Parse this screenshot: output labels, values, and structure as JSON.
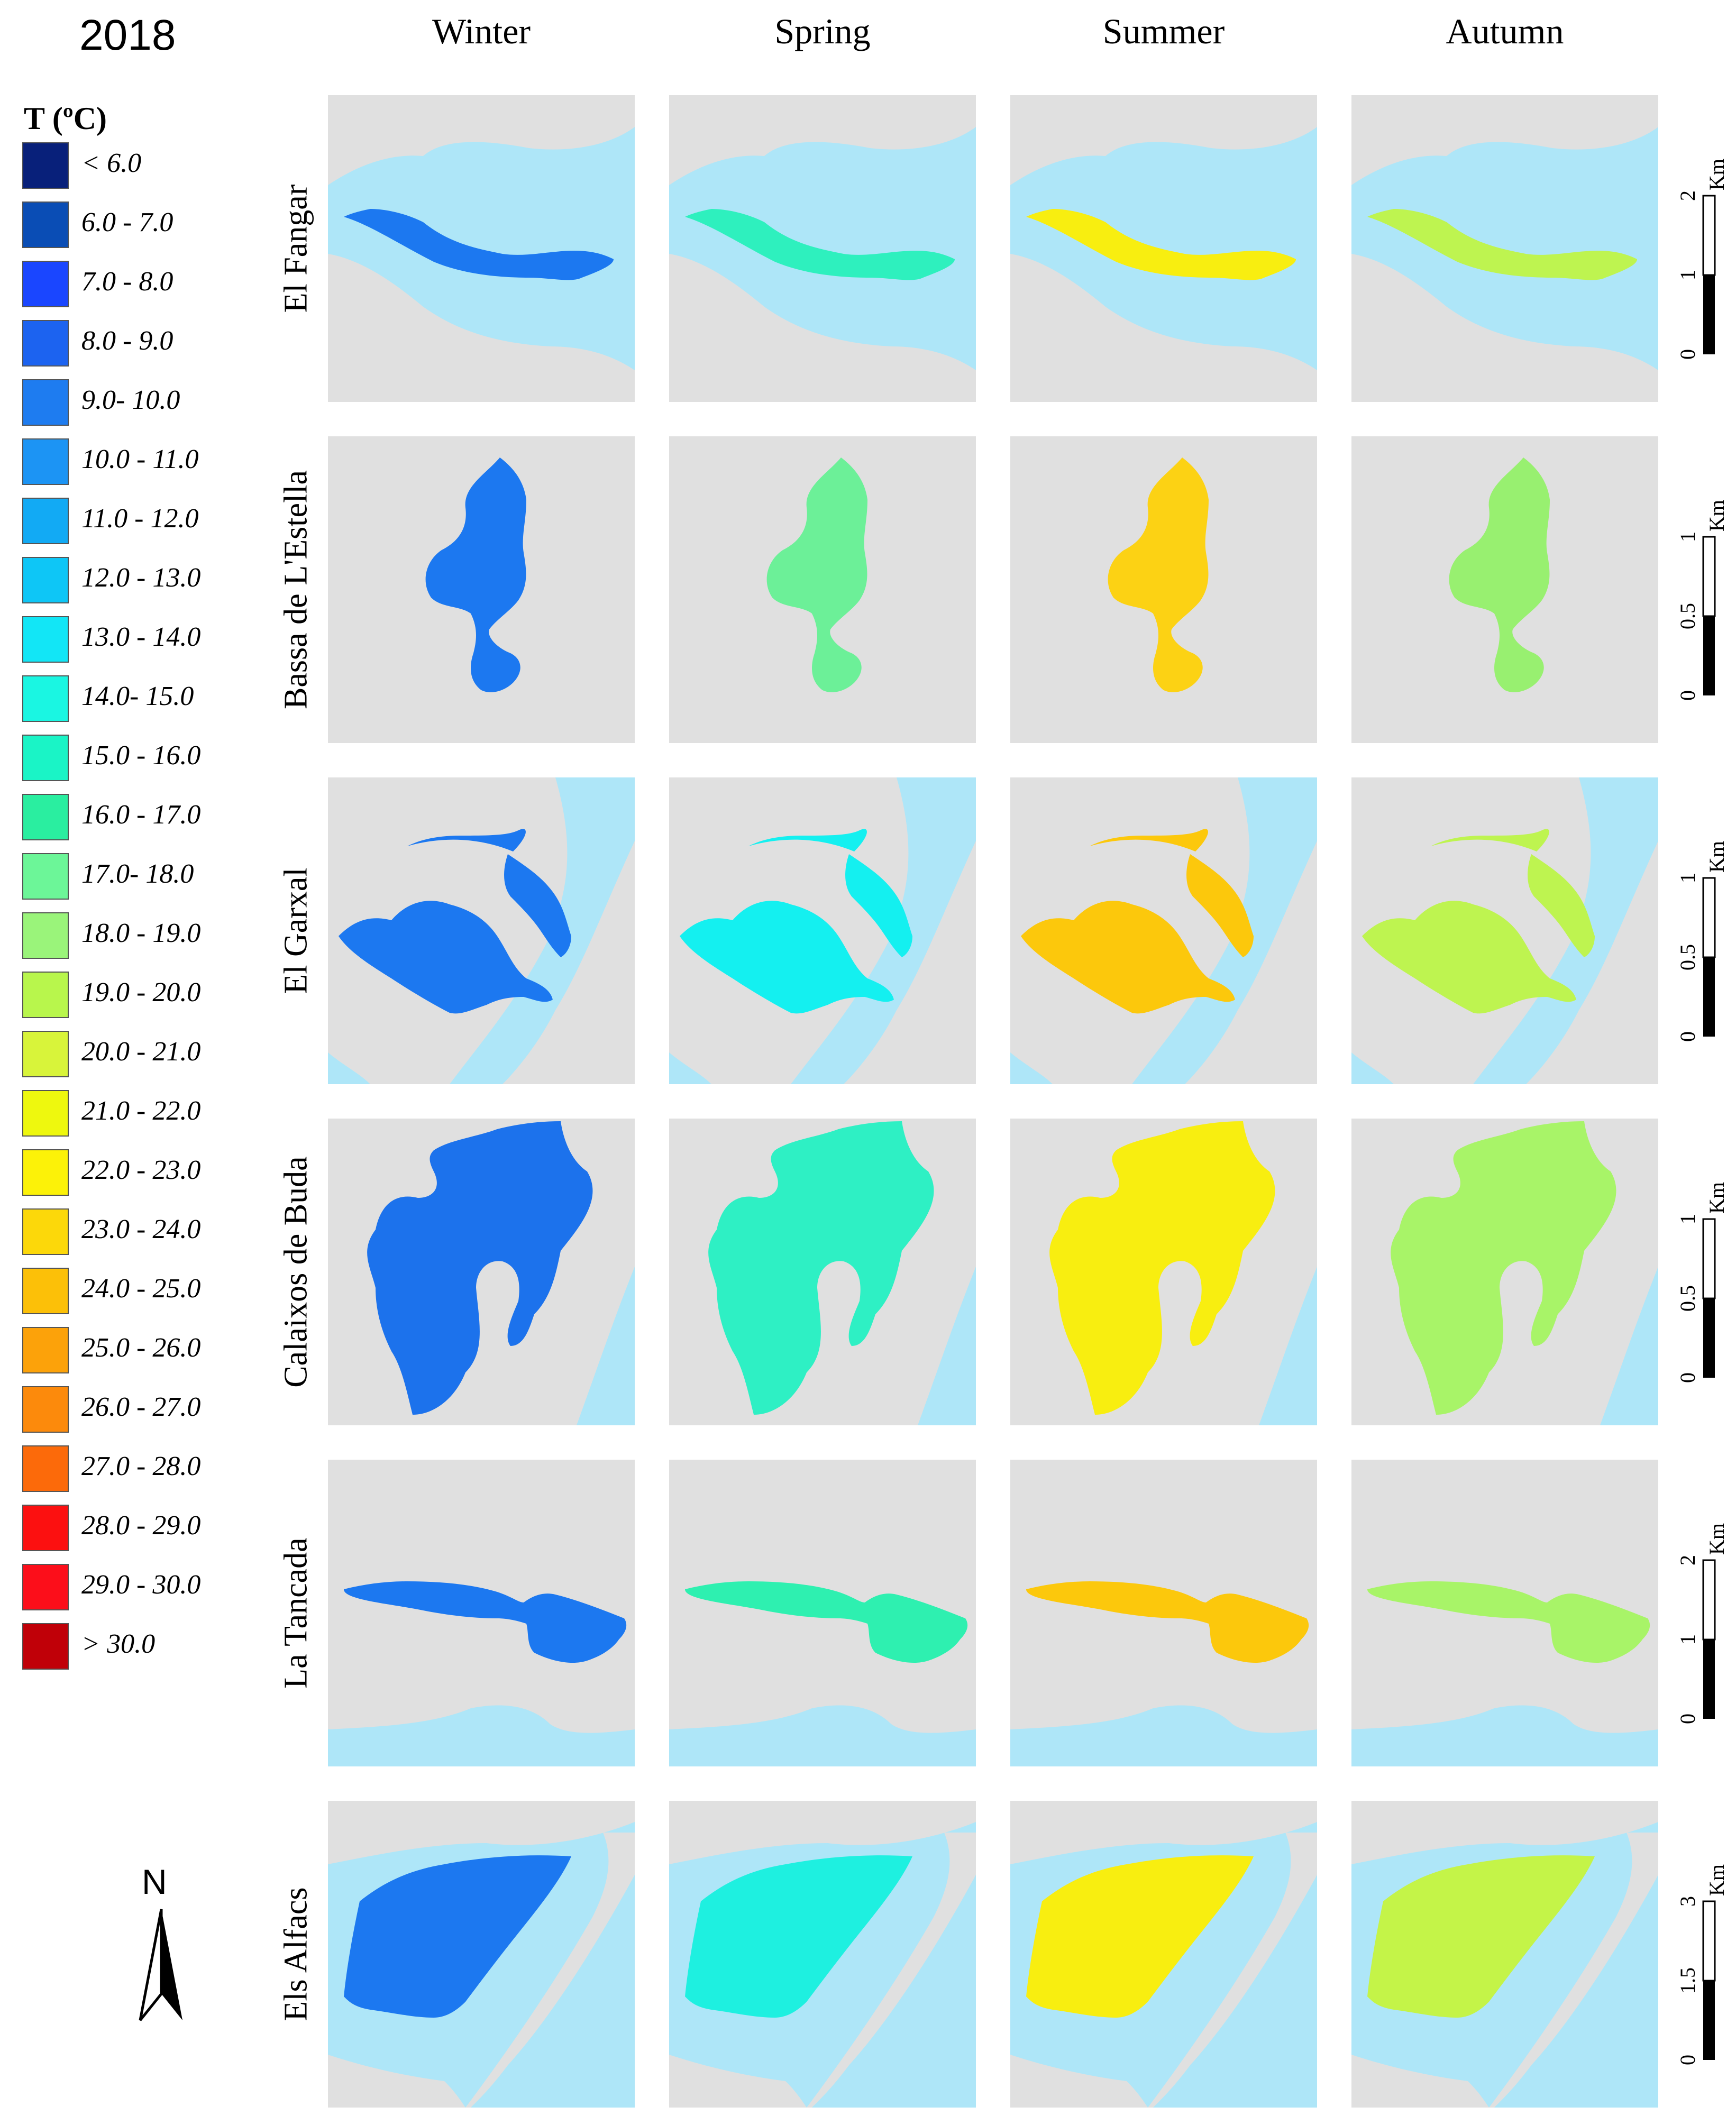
{
  "year": "2018",
  "seasons": [
    "Winter",
    "Spring",
    "Summer",
    "Autumn"
  ],
  "legend": {
    "title": "T (ºC)",
    "classes": [
      {
        "label": "< 6.0",
        "color": "#08207a"
      },
      {
        "label": "6.0 - 7.0",
        "color": "#0a4db5"
      },
      {
        "label": "7.0 - 8.0",
        "color": "#1a46ff"
      },
      {
        "label": "8.0 - 9.0",
        "color": "#1c63f0"
      },
      {
        "label": "9.0- 10.0",
        "color": "#1e7cf0"
      },
      {
        "label": "10.0 - 11.0",
        "color": "#1c94f4"
      },
      {
        "label": "11.0 - 12.0",
        "color": "#12aaf4"
      },
      {
        "label": "12.0 - 13.0",
        "color": "#0ec6f6"
      },
      {
        "label": "13.0 - 14.0",
        "color": "#12e6f6"
      },
      {
        "label": "14.0- 15.0",
        "color": "#1af6e2"
      },
      {
        "label": "15.0 - 16.0",
        "color": "#1af4c6"
      },
      {
        "label": "16.0 - 17.0",
        "color": "#2aeea0"
      },
      {
        "label": "17.0- 18.0",
        "color": "#6cf698"
      },
      {
        "label": "18.0 - 19.0",
        "color": "#9af47a"
      },
      {
        "label": "19.0 - 20.0",
        "color": "#b8f64c"
      },
      {
        "label": "20.0 - 21.0",
        "color": "#d8f43a"
      },
      {
        "label": "21.0 - 22.0",
        "color": "#eef80e"
      },
      {
        "label": "22.0 - 23.0",
        "color": "#fcf208"
      },
      {
        "label": "23.0 - 24.0",
        "color": "#fcd80a"
      },
      {
        "label": "24.0 - 25.0",
        "color": "#fcc008"
      },
      {
        "label": "25.0 - 26.0",
        "color": "#fca20a"
      },
      {
        "label": "26.0 - 27.0",
        "color": "#fc8a0c"
      },
      {
        "label": "27.0 - 28.0",
        "color": "#fc6a0a"
      },
      {
        "label": "28.0 - 29.0",
        "color": "#fc1010"
      },
      {
        "label": "29.0 - 30.0",
        "color": "#fc0e1a"
      },
      {
        "label": "> 30.0",
        "color": "#c00008"
      }
    ]
  },
  "map_colors": {
    "sea": "#aee6f8",
    "land": "#e0e0e0"
  },
  "sites": [
    {
      "name": "El Fangar",
      "scale_ticks": [
        "0",
        "1",
        "2"
      ],
      "scale_unit": "Km",
      "panels": [
        {
          "color": "#1c78f0"
        },
        {
          "color": "#2ef0be"
        },
        {
          "color": "#f8ee10"
        },
        {
          "color": "#bef450"
        }
      ]
    },
    {
      "name": "Bassa de L'Estella",
      "scale_ticks": [
        "0",
        "0.5",
        "1"
      ],
      "scale_unit": "Km",
      "panels": [
        {
          "color": "#1c78f0"
        },
        {
          "color": "#6cf098"
        },
        {
          "color": "#fcd214"
        },
        {
          "color": "#98f070"
        }
      ]
    },
    {
      "name": "El Garxal",
      "scale_ticks": [
        "0",
        "0.5",
        "1"
      ],
      "scale_unit": "Km",
      "panels": [
        {
          "color": "#1c78f0"
        },
        {
          "color": "#14f0f0"
        },
        {
          "color": "#fcc80c"
        },
        {
          "color": "#bef450"
        }
      ]
    },
    {
      "name": "Calaixos de Buda",
      "scale_ticks": [
        "0",
        "0.5",
        "1"
      ],
      "scale_unit": "Km",
      "panels": [
        {
          "color": "#1c72ec"
        },
        {
          "color": "#2ef0c4"
        },
        {
          "color": "#f8ee10"
        },
        {
          "color": "#a8f468"
        }
      ]
    },
    {
      "name": "La Tancada",
      "scale_ticks": [
        "0",
        "1",
        "2"
      ],
      "scale_unit": "Km",
      "panels": [
        {
          "color": "#1c78f0"
        },
        {
          "color": "#2ef0b0"
        },
        {
          "color": "#fcc80c"
        },
        {
          "color": "#a8f468"
        }
      ]
    },
    {
      "name": "Els Alfacs",
      "scale_ticks": [
        "0",
        "1.5",
        "3"
      ],
      "scale_unit": "Km",
      "panels": [
        {
          "color": "#1c78f0"
        },
        {
          "color": "#1ef0e0"
        },
        {
          "color": "#f8ee10"
        },
        {
          "color": "#c4f448"
        }
      ]
    }
  ],
  "north_label": "N"
}
